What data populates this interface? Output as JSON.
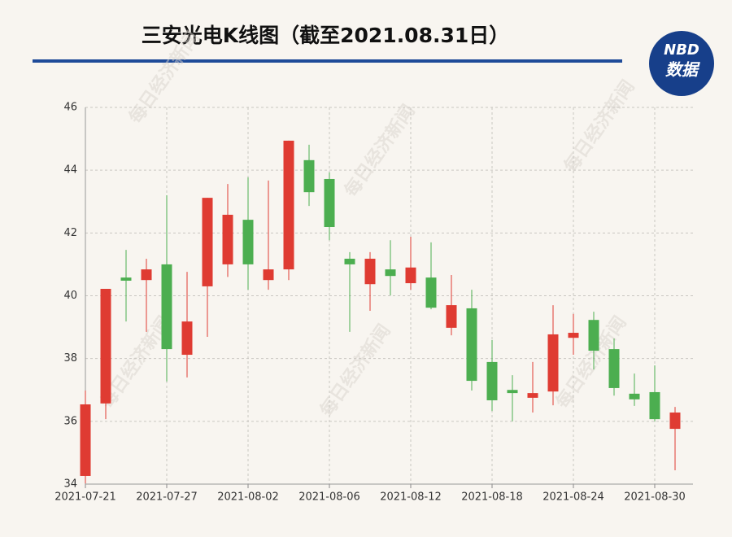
{
  "chart_data": {
    "type": "candlestick",
    "title": "三安光电K线图（截至2021.08.31日）",
    "logo": {
      "top": "NBD",
      "bottom": "数据"
    },
    "watermark": "每日经济新闻",
    "categories": [
      "2021-07-21",
      null,
      null,
      null,
      "2021-07-27",
      null,
      null,
      null,
      "2021-08-02",
      null,
      null,
      null,
      "2021-08-06",
      null,
      null,
      null,
      "2021-08-12",
      null,
      null,
      null,
      "2021-08-18",
      null,
      null,
      null,
      "2021-08-24",
      null,
      null,
      null,
      "2021-08-30",
      null
    ],
    "open": [
      34.26,
      36.57,
      40.58,
      40.5,
      41.0,
      38.12,
      40.3,
      41.0,
      42.42,
      40.5,
      40.84,
      44.32,
      43.72,
      41.18,
      40.37,
      40.84,
      40.4,
      40.58,
      38.98,
      39.6,
      37.89,
      37.0,
      36.75,
      36.95,
      38.66,
      39.23,
      38.3,
      36.88,
      36.93,
      35.76
    ],
    "high": [
      36.98,
      40.22,
      41.46,
      41.18,
      43.2,
      40.76,
      43.12,
      43.56,
      43.77,
      43.67,
      44.94,
      44.81,
      43.93,
      41.39,
      41.39,
      41.77,
      41.88,
      41.7,
      40.66,
      40.19,
      38.59,
      37.47,
      37.89,
      39.7,
      39.42,
      39.49,
      38.64,
      37.52,
      37.78,
      36.46
    ],
    "low": [
      34.02,
      36.07,
      39.18,
      38.85,
      37.27,
      37.4,
      38.69,
      40.6,
      40.19,
      40.19,
      40.5,
      42.86,
      41.77,
      38.85,
      39.52,
      40.01,
      40.19,
      39.57,
      38.74,
      36.98,
      36.33,
      36.0,
      36.28,
      36.51,
      38.12,
      37.65,
      36.82,
      36.49,
      36.0,
      34.44
    ],
    "close": [
      36.54,
      40.22,
      40.48,
      40.84,
      38.3,
      39.18,
      43.12,
      42.58,
      41.0,
      40.84,
      44.94,
      43.3,
      42.19,
      41.0,
      41.18,
      40.63,
      40.9,
      39.62,
      39.7,
      37.29,
      36.67,
      36.9,
      36.9,
      38.77,
      38.82,
      38.25,
      37.06,
      36.7,
      36.07,
      36.28
    ],
    "up_color": "#df3b32",
    "down_color": "#4cae50",
    "ylim": [
      34,
      46
    ],
    "yticks": [
      34,
      36,
      38,
      40,
      42,
      44,
      46
    ],
    "grid": true
  }
}
